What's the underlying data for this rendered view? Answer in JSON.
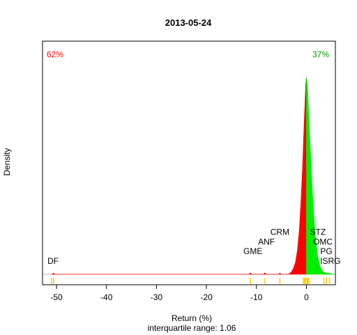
{
  "chart_data": {
    "type": "area",
    "title": "2013-05-24",
    "xlabel": "Return (%)",
    "ylabel": "Density",
    "subtitle": "interquartile range: 1.06",
    "xlim": [
      -52.8,
      5.8
    ],
    "ylim": [
      0,
      1
    ],
    "x_ticks": [
      -50,
      -40,
      -30,
      -20,
      -10,
      0
    ],
    "x_tick_labels": [
      "-50",
      "-40",
      "-30",
      "-20",
      "-10",
      "0"
    ],
    "pct_negative": "62%",
    "pct_positive": "37%",
    "colors": {
      "negative": "#ff0000",
      "positive": "#00ee00",
      "rug": "#ffcc00",
      "baseline": "#bebebe"
    },
    "density_negative": [
      [
        -51.0,
        0.0
      ],
      [
        -50.6,
        0.006
      ],
      [
        -50.2,
        0.0
      ],
      [
        -11.5,
        0.0
      ],
      [
        -11.2,
        0.008
      ],
      [
        -10.9,
        0.0
      ],
      [
        -8.6,
        0.0
      ],
      [
        -8.3,
        0.008
      ],
      [
        -8.0,
        0.0
      ],
      [
        -5.6,
        0.0
      ],
      [
        -5.3,
        0.007
      ],
      [
        -5.0,
        0.0
      ],
      [
        -3.6,
        0.0
      ],
      [
        -3.0,
        0.012
      ],
      [
        -2.6,
        0.03
      ],
      [
        -2.2,
        0.06
      ],
      [
        -1.8,
        0.12
      ],
      [
        -1.4,
        0.23
      ],
      [
        -1.1,
        0.36
      ],
      [
        -0.8,
        0.52
      ],
      [
        -0.5,
        0.72
      ],
      [
        -0.3,
        0.85
      ],
      [
        -0.15,
        0.94
      ],
      [
        0.0,
        0.98
      ]
    ],
    "density_positive": [
      [
        0.0,
        0.98
      ],
      [
        0.15,
        0.96
      ],
      [
        0.3,
        0.9
      ],
      [
        0.5,
        0.78
      ],
      [
        0.8,
        0.62
      ],
      [
        1.1,
        0.46
      ],
      [
        1.4,
        0.32
      ],
      [
        1.8,
        0.19
      ],
      [
        2.2,
        0.1
      ],
      [
        2.6,
        0.05
      ],
      [
        3.0,
        0.025
      ],
      [
        3.4,
        0.012
      ],
      [
        4.0,
        0.006
      ],
      [
        5.0,
        0.004
      ],
      [
        5.4,
        0.0
      ]
    ],
    "annotations": [
      {
        "label": "DF",
        "x": -50.7,
        "y": 0.052
      },
      {
        "label": "GME",
        "x": -10.7,
        "y": 0.1
      },
      {
        "label": "ANF",
        "x": -8.0,
        "y": 0.148
      },
      {
        "label": "CRM",
        "x": -5.3,
        "y": 0.196
      },
      {
        "label": "STZ",
        "x": 2.3,
        "y": 0.196
      },
      {
        "label": "OMC",
        "x": 3.3,
        "y": 0.148
      },
      {
        "label": "PG",
        "x": 4.0,
        "y": 0.1
      },
      {
        "label": "ISRG",
        "x": 4.8,
        "y": 0.052
      }
    ],
    "rug_negative": [
      -51.0,
      -50.6,
      -11.2,
      -8.3,
      -5.3,
      -0.6,
      -0.4,
      -0.2
    ],
    "rug_positive": [
      0.1,
      0.3,
      0.5,
      3.5,
      4.0,
      4.6
    ]
  }
}
